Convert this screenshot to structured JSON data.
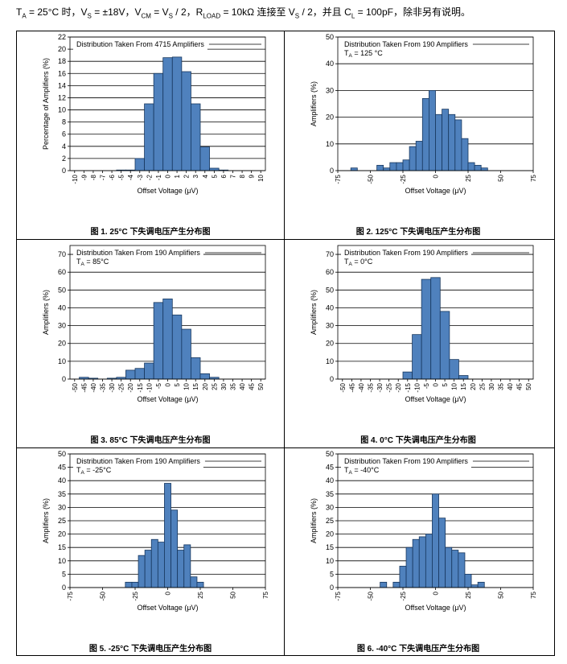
{
  "header": [
    "T",
    "A",
    " = 25°C 时，V",
    "S",
    " = ±18V，V",
    "CM",
    " = V",
    "S",
    " / 2，R",
    "LOAD",
    " = 10kΩ 连接至 V",
    "S",
    " / 2，并且 C",
    "L",
    " = 100pF，除非另有说明。"
  ],
  "chart_data": [
    {
      "type": "histogram",
      "caption": "图 1. 25°C 下失调电压产生分布图",
      "annotation": "Distribution Taken From 4715 Amplifiers",
      "ylabel": "Percentage of Amplifiers (%)",
      "xlabel": "Offset Voltage (μV)",
      "color": "#4f81bd",
      "grid": true,
      "bins": [
        -6.5,
        -5.5,
        -4.5,
        -3.5,
        -2.5,
        -1.5,
        -0.5,
        0.5,
        1.5,
        2.5,
        3.5,
        4.5,
        5.5,
        6.5
      ],
      "values": [
        0,
        0.1,
        0.1,
        2,
        11,
        16,
        18.6,
        18.7,
        16.3,
        11,
        3.9,
        0.4,
        0.1
      ],
      "xlim": [
        -10.5,
        10.5
      ],
      "xticks": [
        -10,
        -9,
        -8,
        -7,
        -6,
        -5,
        -4,
        -3,
        -2,
        -1,
        0,
        1,
        2,
        3,
        4,
        5,
        6,
        7,
        8,
        9,
        10
      ],
      "ylim": [
        0,
        22
      ],
      "yticks": [
        0,
        2,
        4,
        6,
        8,
        10,
        12,
        14,
        16,
        18,
        20,
        22
      ]
    },
    {
      "type": "histogram",
      "caption": "图 2. 125°C 下失调电压产生分布图",
      "annotation": "Distribution Taken From 190 Amplifiers",
      "condition": [
        "T",
        "A",
        " = 125 °C"
      ],
      "ylabel": "Amplifiers (%)",
      "xlabel": "Offset Voltage (μV)",
      "color": "#4f81bd",
      "grid": true,
      "bins": [
        -65,
        -60,
        -55,
        -50,
        -45,
        -40,
        -35,
        -30,
        -25,
        -20,
        -15,
        -10,
        -5,
        0,
        5,
        10,
        15,
        20,
        25,
        30,
        35,
        40
      ],
      "values": [
        1,
        0,
        0,
        0,
        2,
        1,
        3,
        3,
        4,
        9,
        11,
        27,
        30,
        21,
        23,
        21,
        19,
        12,
        3,
        2,
        1
      ],
      "xlim": [
        -75,
        75
      ],
      "xticks": [
        -75,
        -50,
        -25,
        0,
        25,
        50,
        75
      ],
      "ylim": [
        0,
        50
      ],
      "yticks": [
        0,
        10,
        20,
        30,
        40,
        50
      ]
    },
    {
      "type": "histogram",
      "caption": "图 3. 85°C 下失调电压产生分布图",
      "annotation": "Distribution Taken From 190 Amplifiers",
      "condition": [
        "T",
        "A",
        " = 85°C"
      ],
      "ylabel": "Amplifiers (%)",
      "xlabel": "Offset Voltage (μV)",
      "color": "#4f81bd",
      "grid": true,
      "bins": [
        -47.5,
        -42.5,
        -37.5,
        -32.5,
        -27.5,
        -22.5,
        -17.5,
        -12.5,
        -7.5,
        -2.5,
        2.5,
        7.5,
        12.5,
        17.5,
        22.5,
        27.5
      ],
      "values": [
        1,
        0.5,
        0,
        0.5,
        1,
        5,
        6,
        9,
        43,
        45,
        36,
        28,
        12,
        3,
        1
      ],
      "xlim": [
        -52.5,
        52.5
      ],
      "xticks": [
        -50,
        -45,
        -40,
        -35,
        -30,
        -25,
        -20,
        -15,
        -10,
        -5,
        0,
        5,
        10,
        15,
        20,
        25,
        30,
        35,
        40,
        45,
        50
      ],
      "ylim": [
        0,
        75
      ],
      "yticks": [
        0,
        10,
        20,
        30,
        40,
        50,
        60,
        70
      ]
    },
    {
      "type": "histogram",
      "caption": "图 4. 0°C 下失调电压产生分布图",
      "annotation": "Distribution Taken From 190 Amplifiers",
      "condition": [
        "T",
        "A",
        " = 0°C"
      ],
      "ylabel": "Amplifiers (%)",
      "xlabel": "Offset Voltage (μV)",
      "color": "#4f81bd",
      "grid": true,
      "bins": [
        -17.5,
        -12.5,
        -7.5,
        -2.5,
        2.5,
        7.5,
        12.5,
        17.5
      ],
      "values": [
        4,
        25,
        56,
        57,
        38,
        11,
        2
      ],
      "xlim": [
        -52.5,
        52.5
      ],
      "xticks": [
        -50,
        -45,
        -40,
        -35,
        -30,
        -25,
        -20,
        -15,
        -10,
        -5,
        0,
        5,
        10,
        15,
        20,
        25,
        30,
        35,
        40,
        45,
        50
      ],
      "ylim": [
        0,
        75
      ],
      "yticks": [
        0,
        10,
        20,
        30,
        40,
        50,
        60,
        70
      ]
    },
    {
      "type": "histogram",
      "caption": "图 5. -25°C 下失调电压产生分布图",
      "annotation": "Distribution Taken From 190 Amplifiers",
      "condition": [
        "T",
        "A",
        " = -25°C"
      ],
      "ylabel": "Amplifiers (%)",
      "xlabel": "Offset Voltage (μV)",
      "color": "#4f81bd",
      "grid": true,
      "bins": [
        -32.5,
        -27.5,
        -22.5,
        -17.5,
        -12.5,
        -7.5,
        -2.5,
        2.5,
        7.5,
        12.5,
        17.5,
        22.5,
        27.5
      ],
      "values": [
        2,
        2,
        12,
        14,
        18,
        17,
        39,
        29,
        14,
        16,
        4,
        2
      ],
      "xlim": [
        -75,
        75
      ],
      "xticks": [
        -75,
        -50,
        -25,
        0,
        25,
        50,
        75
      ],
      "ylim": [
        0,
        50
      ],
      "yticks": [
        0,
        5,
        10,
        15,
        20,
        25,
        30,
        35,
        40,
        45,
        50
      ]
    },
    {
      "type": "histogram",
      "caption": "图 6. -40°C 下失调电压产生分布图",
      "annotation": "Distribution Taken From 190 Amplifiers",
      "condition": [
        "T",
        "A",
        " = -40°C"
      ],
      "ylabel": "Amplifiers (%)",
      "xlabel": "Offset Voltage (μV)",
      "color": "#4f81bd",
      "grid": true,
      "bins": [
        -42.5,
        -37.5,
        -32.5,
        -27.5,
        -22.5,
        -17.5,
        -12.5,
        -7.5,
        -2.5,
        2.5,
        7.5,
        12.5,
        17.5,
        22.5,
        27.5,
        32.5,
        37.5
      ],
      "values": [
        2,
        0,
        2,
        8,
        15,
        18,
        19,
        20,
        35,
        26,
        15,
        14,
        13,
        5,
        1,
        2
      ],
      "xlim": [
        -75,
        75
      ],
      "xticks": [
        -75,
        -50,
        -25,
        0,
        25,
        50,
        75
      ],
      "ylim": [
        0,
        50
      ],
      "yticks": [
        0,
        5,
        10,
        15,
        20,
        25,
        30,
        35,
        40,
        45,
        50
      ]
    }
  ]
}
